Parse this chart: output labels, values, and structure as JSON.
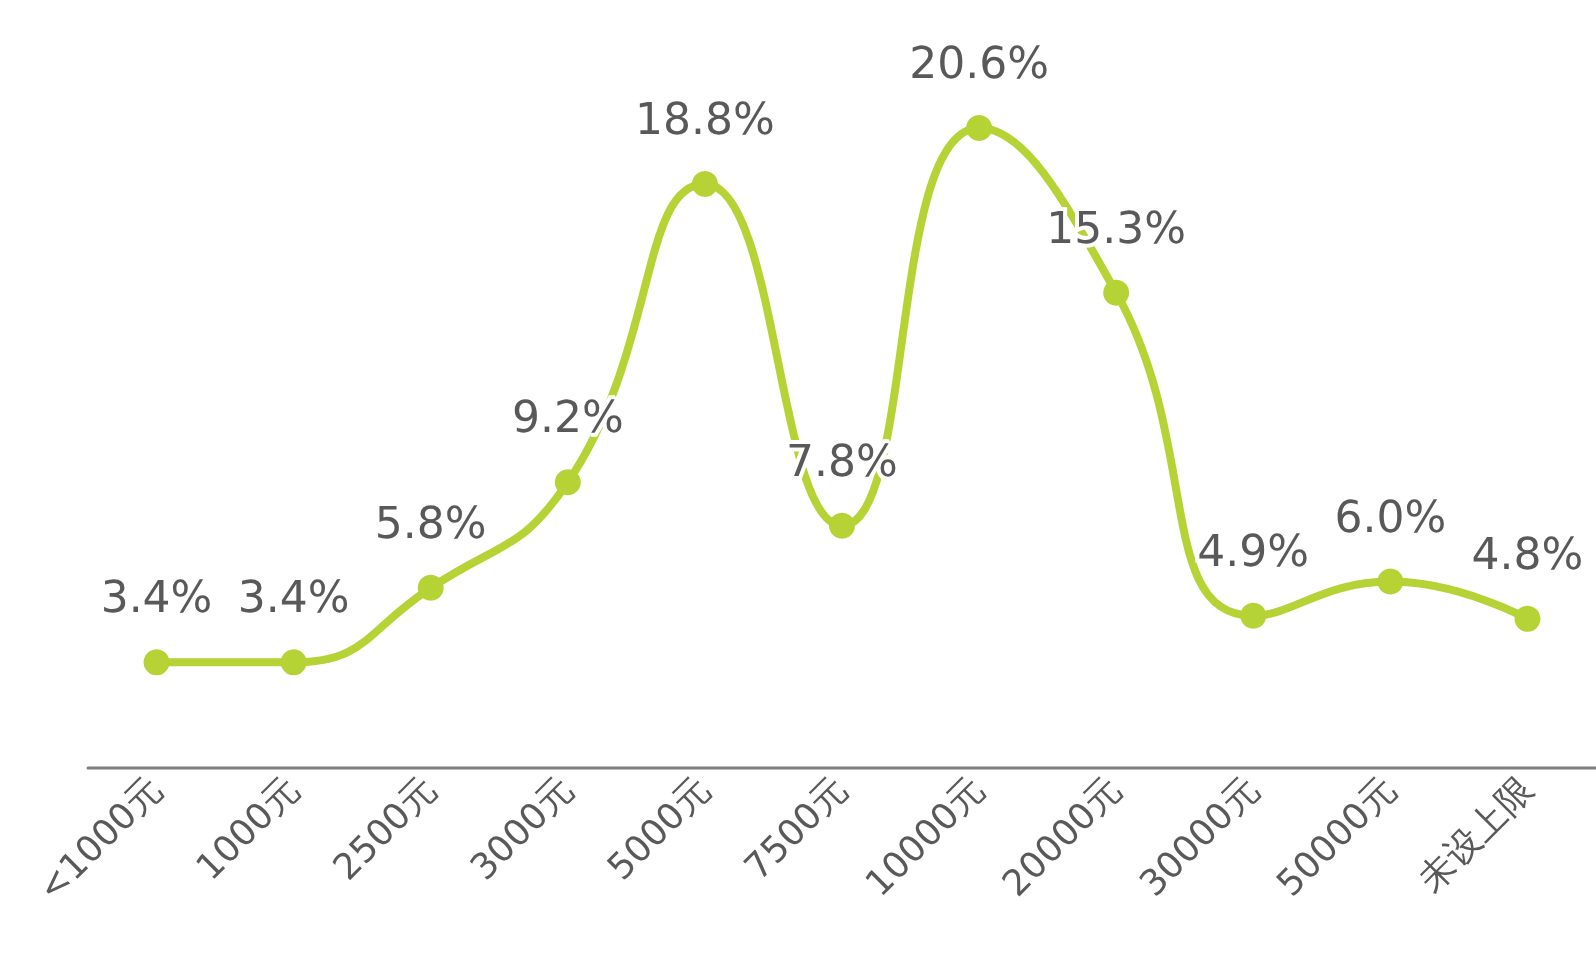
{
  "chart_data": {
    "type": "line",
    "categories": [
      "<1000元",
      "1000元",
      "2500元",
      "3000元",
      "5000元",
      "7500元",
      "10000元",
      "20000元",
      "30000元",
      "50000元",
      "未设上限"
    ],
    "series": [
      {
        "color": "#b5d334",
        "values": [
          3.4,
          3.4,
          5.8,
          9.2,
          18.8,
          7.8,
          20.6,
          15.3,
          4.9,
          6.0,
          4.8
        ],
        "value_labels": [
          "3.4%",
          "3.4%",
          "5.8%",
          "9.2%",
          "18.8%",
          "7.8%",
          "20.6%",
          "15.3%",
          "4.9%",
          "6.0%",
          "4.8%"
        ]
      }
    ],
    "marker": "circle"
  }
}
